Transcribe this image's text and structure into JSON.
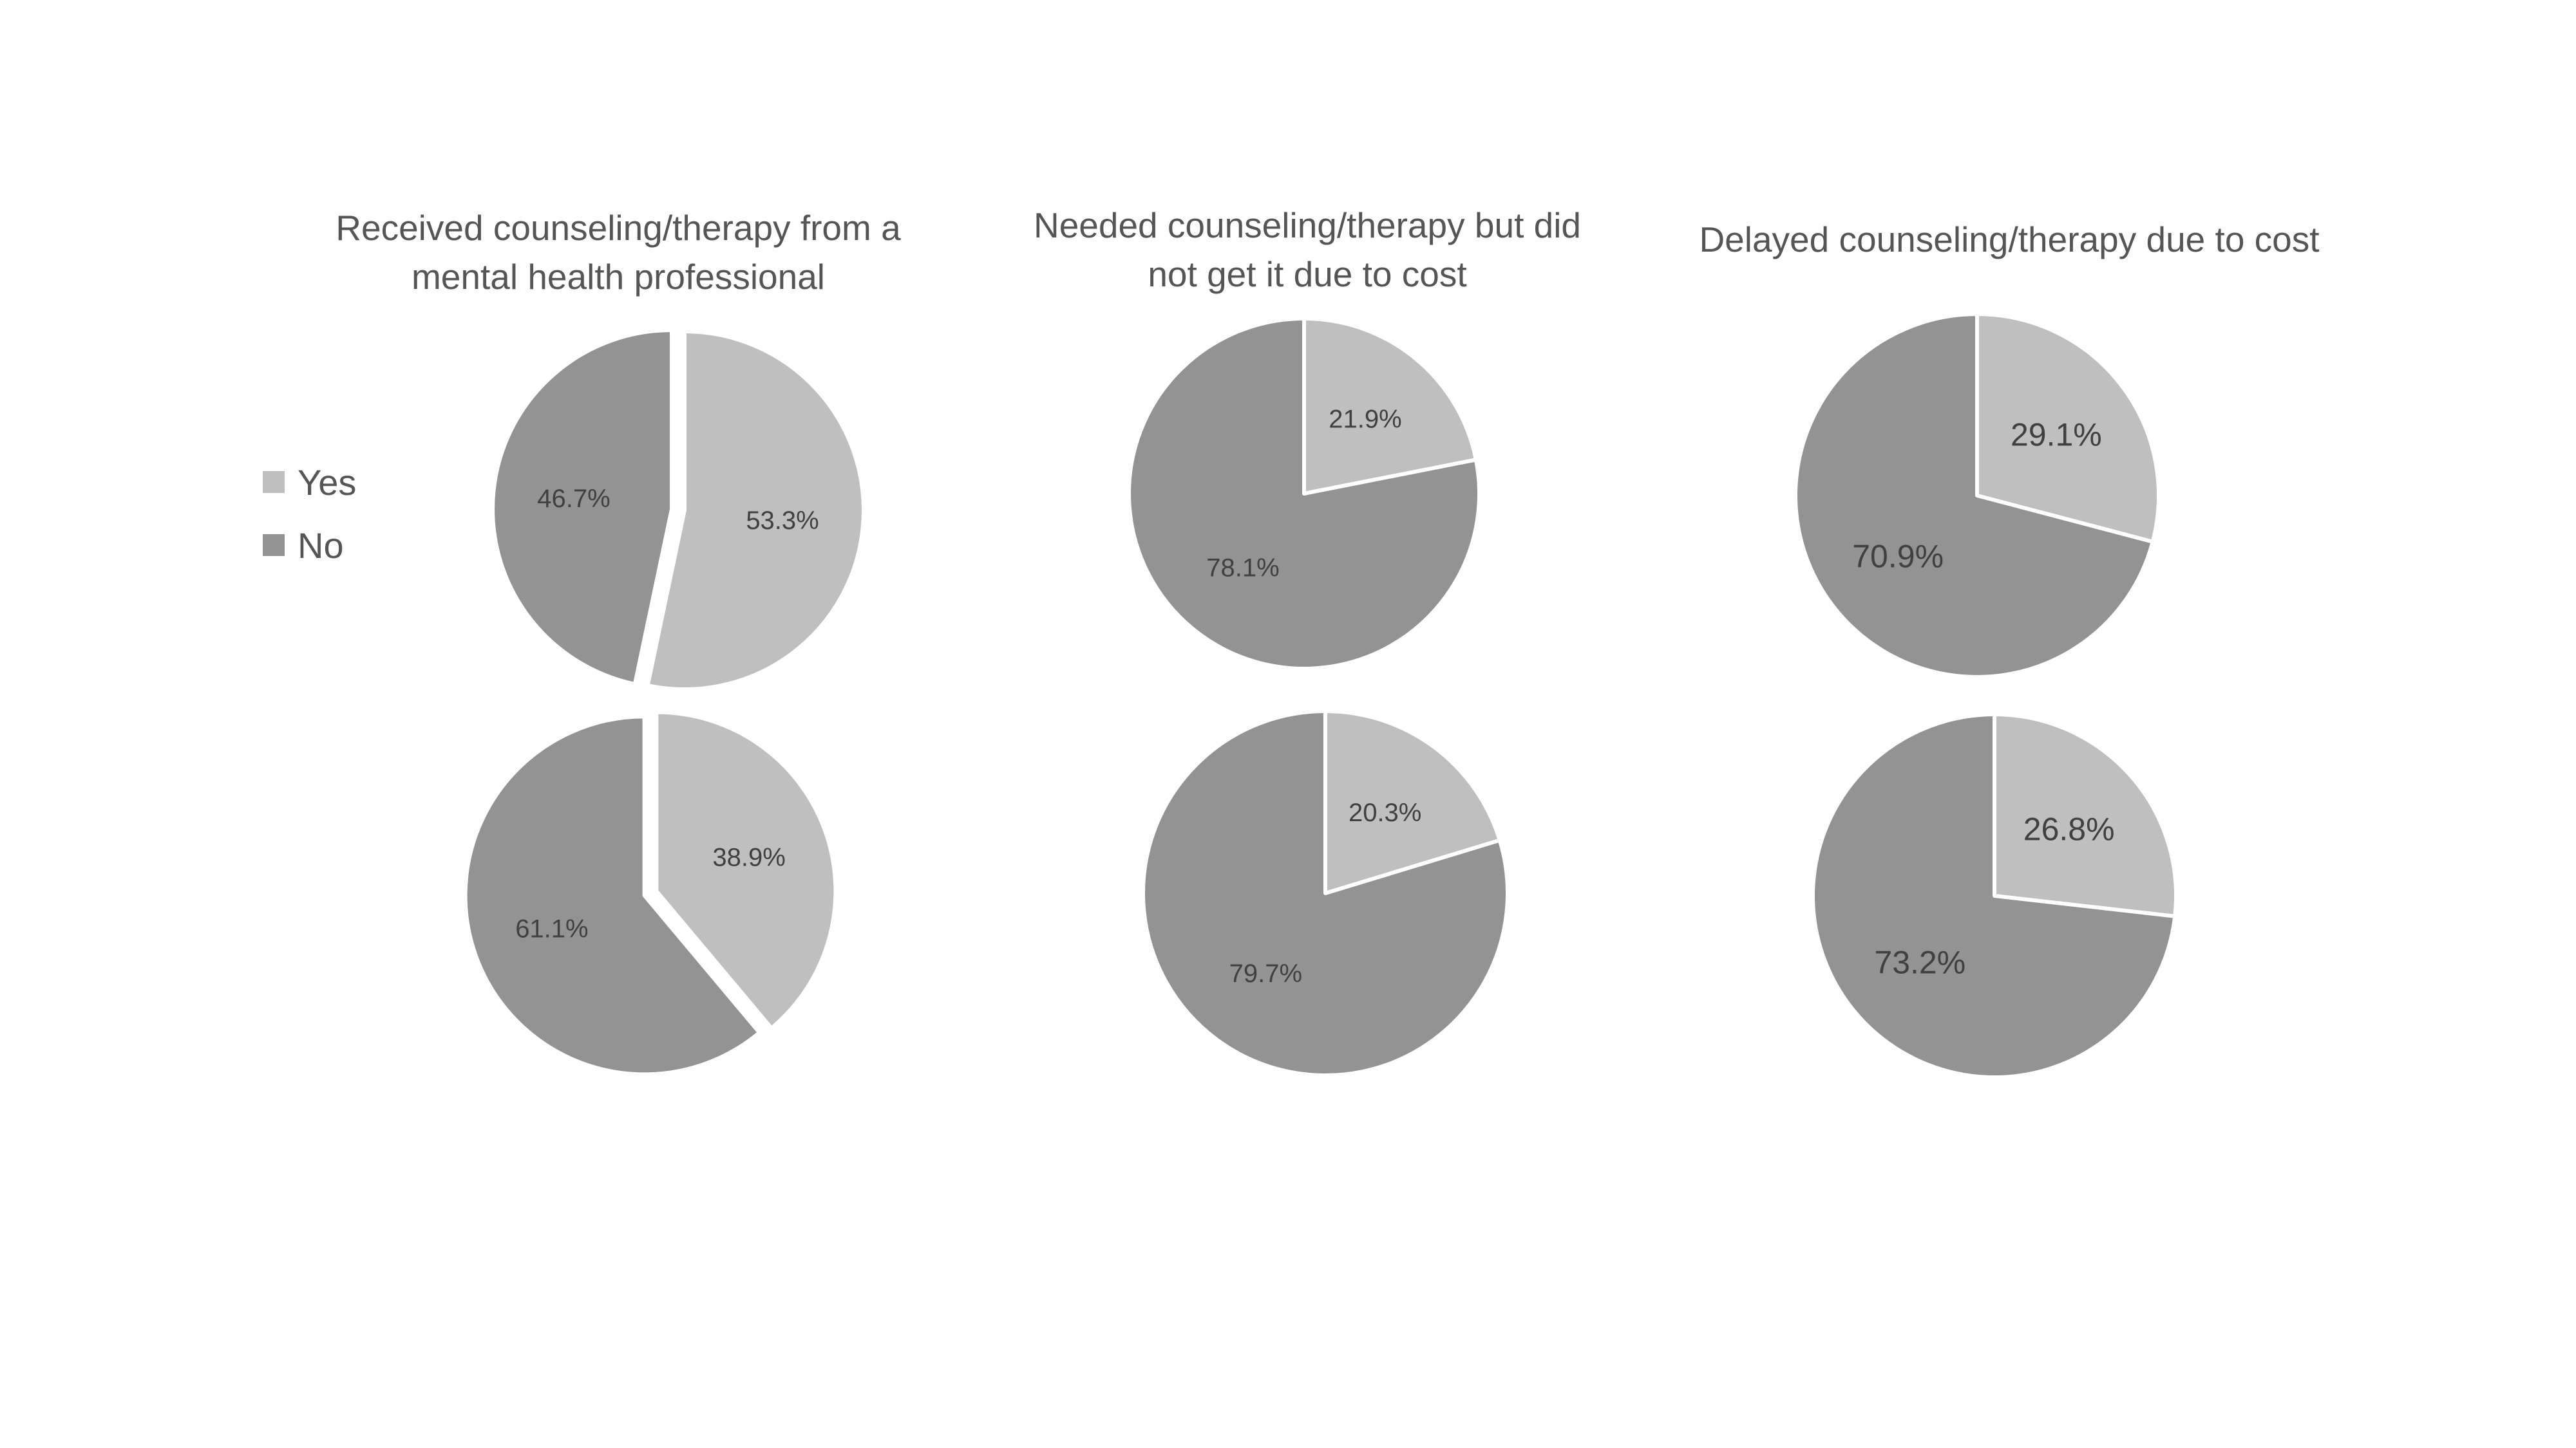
{
  "chart_data": {
    "type": "pie",
    "legend": {
      "position": "left",
      "entries": [
        "Yes",
        "No"
      ]
    },
    "colors": {
      "Yes": "#bfbfbf",
      "No": "#939393",
      "edge": "#ffffff",
      "label": "#404040"
    },
    "panels": [
      {
        "title": "Received counseling/therapy from a mental health professional",
        "title_lines": [
          "Received counseling/therapy from a",
          "mental health professional"
        ],
        "pies": [
          {
            "categories": [
              "Yes",
              "No"
            ],
            "values": [
              53.3,
              46.7
            ],
            "labels": [
              "53.3%",
              "46.7%"
            ],
            "exploded": true
          },
          {
            "categories": [
              "Yes",
              "No"
            ],
            "values": [
              38.9,
              61.1
            ],
            "labels": [
              "38.9%",
              "61.1%"
            ],
            "exploded": true
          }
        ]
      },
      {
        "title": "Needed counseling/therapy but did not get it due to cost",
        "title_lines": [
          "Needed counseling/therapy but did",
          "not get it due to cost"
        ],
        "pies": [
          {
            "categories": [
              "Yes",
              "No"
            ],
            "values": [
              21.9,
              78.1
            ],
            "labels": [
              "21.9%",
              "78.1%"
            ],
            "exploded": false
          },
          {
            "categories": [
              "Yes",
              "No"
            ],
            "values": [
              20.3,
              79.7
            ],
            "labels": [
              "20.3%",
              "79.7%"
            ],
            "exploded": false
          }
        ]
      },
      {
        "title": "Delayed counseling/therapy due to  cost",
        "title_lines": [
          "Delayed counseling/therapy due to  cost"
        ],
        "pies": [
          {
            "categories": [
              "Yes",
              "No"
            ],
            "values": [
              29.1,
              70.9
            ],
            "labels": [
              "29.1%",
              "70.9%"
            ],
            "exploded": false
          },
          {
            "categories": [
              "Yes",
              "No"
            ],
            "values": [
              26.8,
              73.2
            ],
            "labels": [
              "26.8%",
              "73.2%"
            ],
            "exploded": false
          }
        ]
      }
    ]
  }
}
